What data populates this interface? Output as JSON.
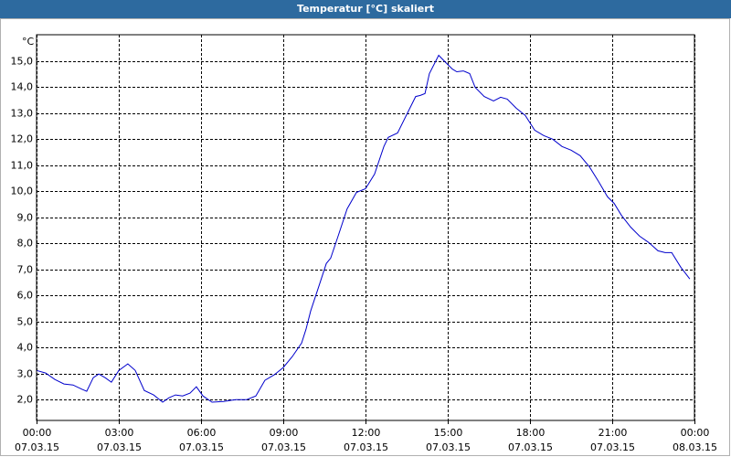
{
  "chart_data": {
    "type": "line",
    "title": "Temperatur [°C] skaliert",
    "y_label": "°C",
    "xlim": [
      0,
      24
    ],
    "xticks": [
      {
        "value": 0,
        "label": "00:00\n07.03.15"
      },
      {
        "value": 3,
        "label": "03:00\n07.03.15"
      },
      {
        "value": 6,
        "label": "06:00\n07.03.15"
      },
      {
        "value": 9,
        "label": "09:00\n07.03.15"
      },
      {
        "value": 12,
        "label": "12:00\n07.03.15"
      },
      {
        "value": 15,
        "label": "15:00\n07.03.15"
      },
      {
        "value": 18,
        "label": "18:00\n07.03.15"
      },
      {
        "value": 21,
        "label": "21:00\n07.03.15"
      },
      {
        "value": 24,
        "label": "00:00\n08.03.15"
      }
    ],
    "ylim": [
      1.2,
      16.0
    ],
    "yticks": [
      {
        "value": 2,
        "label": "2,0"
      },
      {
        "value": 3,
        "label": "3,0"
      },
      {
        "value": 4,
        "label": "4,0"
      },
      {
        "value": 5,
        "label": "5,0"
      },
      {
        "value": 6,
        "label": "6,0"
      },
      {
        "value": 7,
        "label": "7,0"
      },
      {
        "value": 8,
        "label": "8,0"
      },
      {
        "value": 9,
        "label": "9,0"
      },
      {
        "value": 10,
        "label": "10,0"
      },
      {
        "value": 11,
        "label": "11,0"
      },
      {
        "value": 12,
        "label": "12,0"
      },
      {
        "value": 13,
        "label": "13,0"
      },
      {
        "value": 14,
        "label": "14,0"
      },
      {
        "value": 15,
        "label": "15,0"
      }
    ],
    "grid": true,
    "color": "#0000cc",
    "x": [
      0,
      0.33,
      0.67,
      1.0,
      1.33,
      1.67,
      1.83,
      2.07,
      2.27,
      2.5,
      2.73,
      3.0,
      3.33,
      3.6,
      3.93,
      4.27,
      4.6,
      4.83,
      5.07,
      5.33,
      5.6,
      5.83,
      6.07,
      6.4,
      6.83,
      7.27,
      7.67,
      8.0,
      8.33,
      8.67,
      9.0,
      9.33,
      9.67,
      9.83,
      10.0,
      10.33,
      10.57,
      10.73,
      11.0,
      11.33,
      11.67,
      12.0,
      12.33,
      12.67,
      12.83,
      13.17,
      13.5,
      13.83,
      14.0,
      14.17,
      14.33,
      14.67,
      14.93,
      15.17,
      15.33,
      15.57,
      15.8,
      16.0,
      16.33,
      16.67,
      16.93,
      17.17,
      17.5,
      17.83,
      18.17,
      18.5,
      18.83,
      19.17,
      19.5,
      19.83,
      20.17,
      20.5,
      20.83,
      21.07,
      21.33,
      21.67,
      22.0,
      22.33,
      22.67,
      22.93,
      23.17,
      23.5,
      23.83
    ],
    "values": [
      3.12,
      3.02,
      2.77,
      2.6,
      2.56,
      2.39,
      2.32,
      2.84,
      2.98,
      2.84,
      2.67,
      3.12,
      3.37,
      3.12,
      2.35,
      2.18,
      1.9,
      2.07,
      2.18,
      2.14,
      2.25,
      2.49,
      2.14,
      1.9,
      1.93,
      2.0,
      2.0,
      2.14,
      2.74,
      2.95,
      3.23,
      3.65,
      4.17,
      4.7,
      5.4,
      6.45,
      7.22,
      7.43,
      8.27,
      9.32,
      9.95,
      10.09,
      10.65,
      11.71,
      12.06,
      12.23,
      12.93,
      13.63,
      13.67,
      13.74,
      14.51,
      15.21,
      14.93,
      14.68,
      14.58,
      14.61,
      14.51,
      13.98,
      13.63,
      13.46,
      13.6,
      13.53,
      13.18,
      12.9,
      12.34,
      12.13,
      11.99,
      11.71,
      11.57,
      11.36,
      10.93,
      10.37,
      9.78,
      9.53,
      9.08,
      8.62,
      8.27,
      8.03,
      7.71,
      7.64,
      7.64,
      7.08,
      6.63
    ]
  }
}
